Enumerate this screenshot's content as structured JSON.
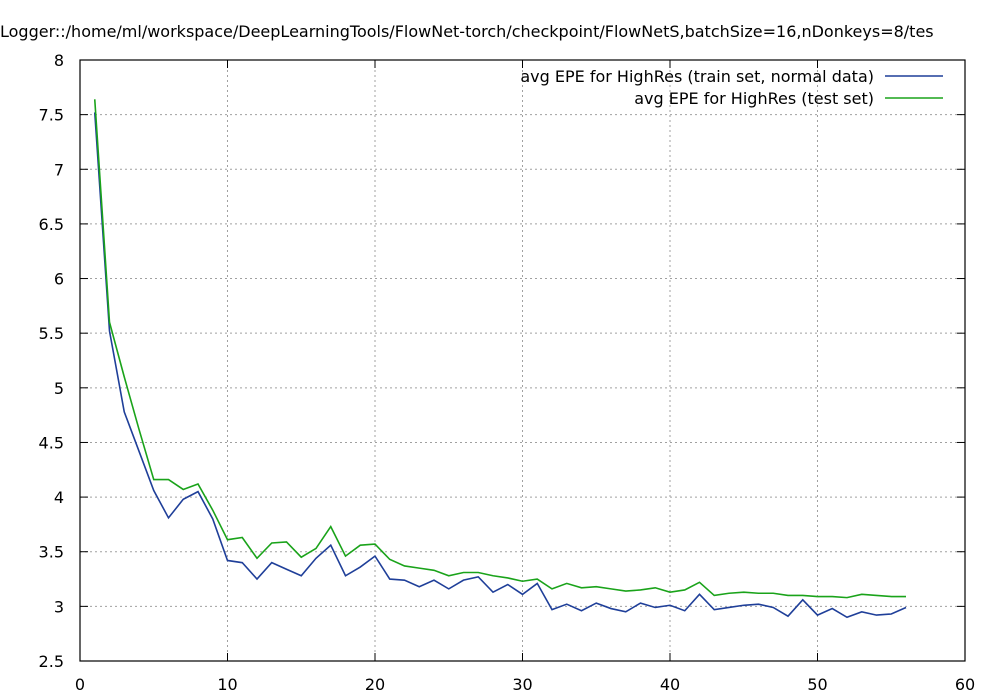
{
  "chart_data": {
    "type": "line",
    "title": "Logger::/home/ml/workspace/DeepLearningTools/FlowNet-torch/checkpoint/FlowNetS,batchSize=16,nDonkeys=8/tes",
    "xlabel": "",
    "ylabel": "",
    "xlim": [
      0,
      60
    ],
    "ylim": [
      2.5,
      8
    ],
    "xticks": [
      0,
      10,
      20,
      30,
      40,
      50,
      60
    ],
    "yticks": [
      2.5,
      3,
      3.5,
      4,
      4.5,
      5,
      5.5,
      6,
      6.5,
      7,
      7.5,
      8
    ],
    "xtick_labels": [
      "0",
      "10",
      "20",
      "30",
      "40",
      "50",
      "60"
    ],
    "ytick_labels": [
      "2.5",
      "3",
      "3.5",
      "4",
      "4.5",
      "5",
      "5.5",
      "6",
      "6.5",
      "7",
      "7.5",
      "8"
    ],
    "grid": true,
    "legend_position": "top-right",
    "x": [
      1,
      2,
      3,
      4,
      5,
      6,
      7,
      8,
      9,
      10,
      11,
      12,
      13,
      14,
      15,
      16,
      17,
      18,
      19,
      20,
      21,
      22,
      23,
      24,
      25,
      26,
      27,
      28,
      29,
      30,
      31,
      32,
      33,
      34,
      35,
      36,
      37,
      38,
      39,
      40,
      41,
      42,
      43,
      44,
      45,
      46,
      47,
      48,
      49,
      50,
      51,
      52,
      53,
      54,
      55,
      56
    ],
    "series": [
      {
        "name": "avg EPE for HighRes (train set, normal data)",
        "color": "#1f3f99",
        "values": [
          7.52,
          5.52,
          4.78,
          4.42,
          4.06,
          3.81,
          3.98,
          4.05,
          3.8,
          3.42,
          3.4,
          3.25,
          3.4,
          3.34,
          3.28,
          3.44,
          3.56,
          3.28,
          3.36,
          3.46,
          3.25,
          3.24,
          3.18,
          3.24,
          3.16,
          3.24,
          3.27,
          3.13,
          3.2,
          3.11,
          3.21,
          2.97,
          3.02,
          2.96,
          3.03,
          2.98,
          2.95,
          3.03,
          2.99,
          3.01,
          2.96,
          3.11,
          2.97,
          2.99,
          3.01,
          3.02,
          2.99,
          2.91,
          3.06,
          2.92,
          2.98,
          2.9,
          2.95,
          2.92,
          2.93,
          2.99
        ]
      },
      {
        "name": "avg EPE for HighRes (test set)",
        "color": "#1aa31a",
        "values": [
          7.64,
          5.6,
          5.1,
          4.62,
          4.16,
          4.16,
          4.07,
          4.12,
          3.88,
          3.61,
          3.63,
          3.44,
          3.58,
          3.59,
          3.45,
          3.53,
          3.73,
          3.46,
          3.56,
          3.57,
          3.43,
          3.37,
          3.35,
          3.33,
          3.28,
          3.31,
          3.31,
          3.28,
          3.26,
          3.23,
          3.25,
          3.16,
          3.21,
          3.17,
          3.18,
          3.16,
          3.14,
          3.15,
          3.17,
          3.13,
          3.15,
          3.22,
          3.1,
          3.12,
          3.13,
          3.12,
          3.12,
          3.1,
          3.1,
          3.09,
          3.09,
          3.08,
          3.11,
          3.1,
          3.09,
          3.09
        ]
      }
    ]
  }
}
